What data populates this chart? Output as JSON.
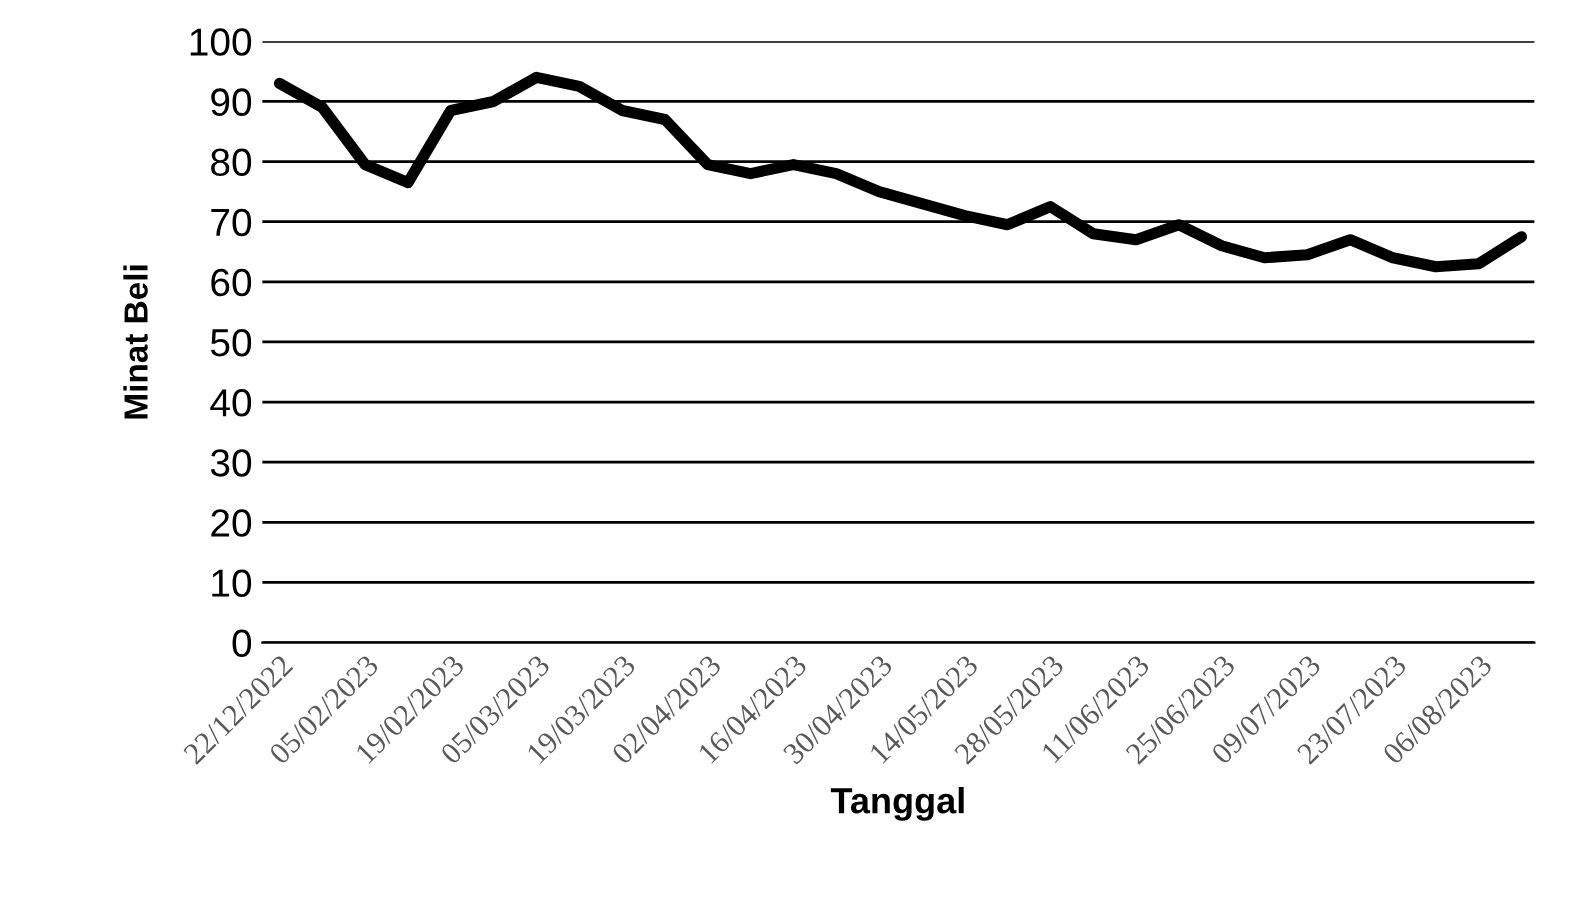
{
  "chart_data": {
    "type": "line",
    "xlabel": "Tanggal",
    "ylabel": "Minat Beli",
    "categories": [
      "22/12/2022",
      null,
      "05/02/2023",
      null,
      "19/02/2023",
      null,
      "05/03/2023",
      null,
      "19/03/2023",
      null,
      "02/04/2023",
      null,
      "16/04/2023",
      null,
      "30/04/2023",
      null,
      "14/05/2023",
      null,
      "28/05/2023",
      null,
      "11/06/2023",
      null,
      "25/06/2023",
      null,
      "09/07/2023",
      null,
      "23/07/2023",
      null,
      "06/08/2023",
      null
    ],
    "series": [
      {
        "color": "#000000",
        "values": [
          93,
          89,
          79.5,
          76.5,
          88.5,
          90,
          94,
          92.5,
          88.5,
          87,
          79.5,
          78,
          79.5,
          78,
          75,
          73,
          71,
          69.5,
          72.5,
          68,
          67,
          69.5,
          66,
          64,
          64.5,
          67,
          64,
          62.5,
          63,
          67.5
        ]
      }
    ],
    "ylim": [
      0,
      100
    ],
    "yticks": [
      0,
      10,
      20,
      30,
      40,
      50,
      60,
      70,
      80,
      90,
      100
    ],
    "grid": "y",
    "legend": false,
    "marker": "none",
    "line_style": "solid"
  }
}
